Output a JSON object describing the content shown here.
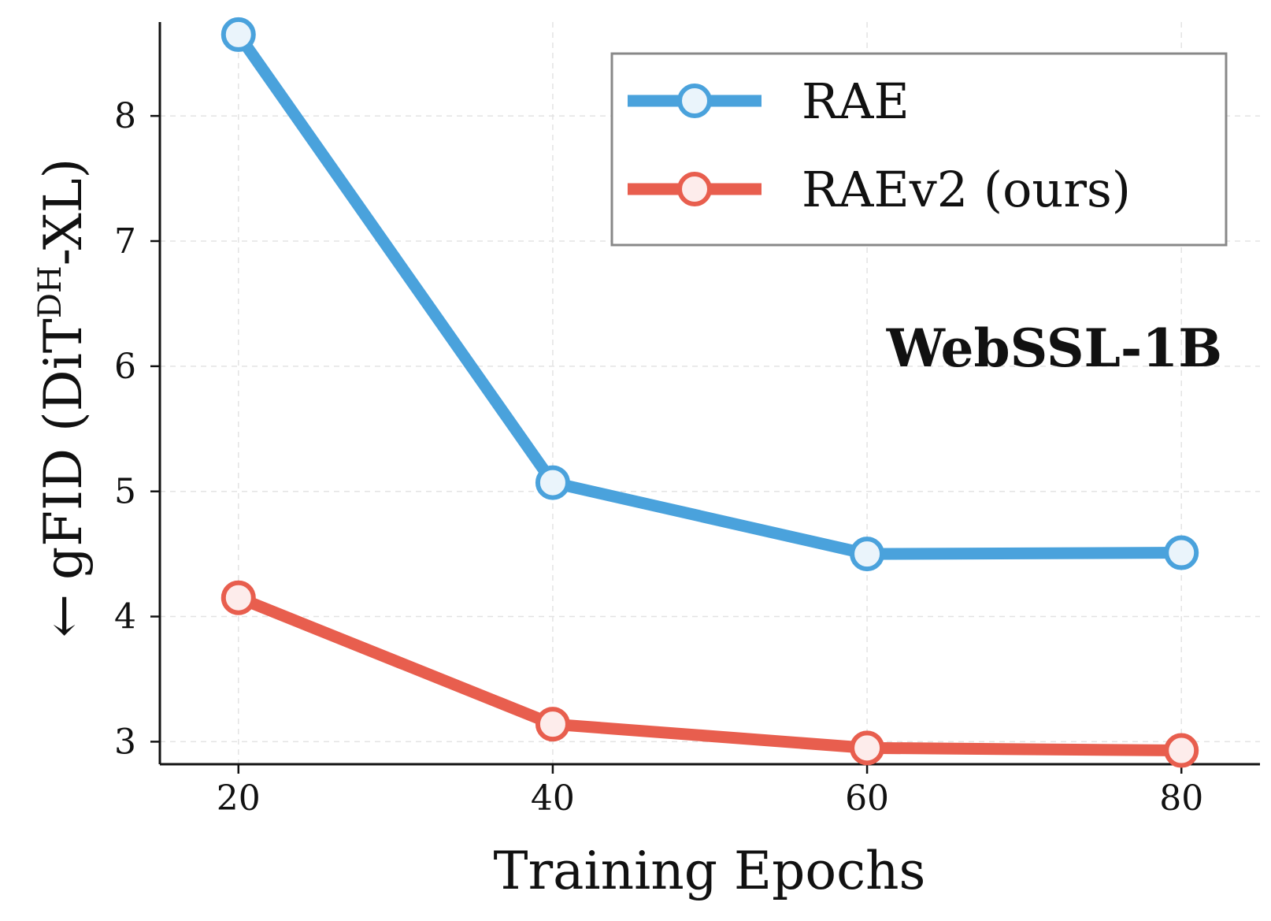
{
  "chart_data": {
    "type": "line",
    "x": [
      20,
      40,
      60,
      80
    ],
    "x_ticks": [
      "20",
      "40",
      "60",
      "80"
    ],
    "y_ticks": [
      "3",
      "4",
      "5",
      "6",
      "7",
      "8"
    ],
    "xlim": [
      15,
      85
    ],
    "ylim": [
      2.82,
      8.75
    ],
    "xlabel": "Training Epochs",
    "ylabel": {
      "arrow": "←",
      "prefix": "gFID (DiT",
      "superscript": "DH",
      "suffix": "-XL)"
    },
    "annotation": "WebSSL-1B",
    "grid": true,
    "legend_position": "top-right",
    "series": [
      {
        "name": "RAE",
        "color": "#4aa2dc",
        "fill": "#eaf4fb",
        "values": [
          8.65,
          5.07,
          4.5,
          4.51
        ]
      },
      {
        "name": "RAEv2 (ours)",
        "color": "#e85e4e",
        "fill": "#fdeceb",
        "values": [
          4.15,
          3.14,
          2.95,
          2.93
        ]
      }
    ]
  }
}
